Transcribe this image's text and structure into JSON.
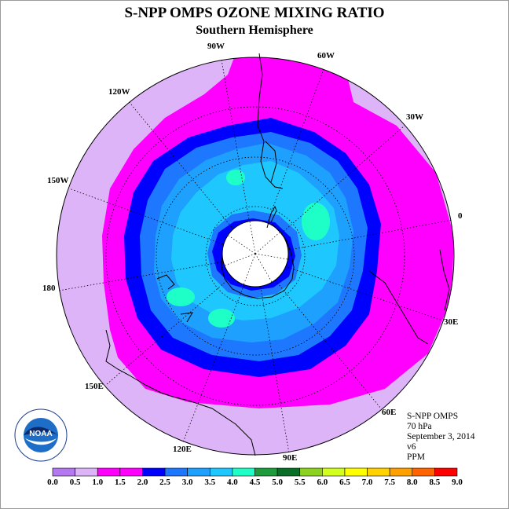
{
  "title": "S-NPP OMPS OZONE MIXING RATIO",
  "subtitle": "Southern Hemisphere",
  "longitude_labels": [
    "90W",
    "60W",
    "30W",
    "0",
    "30E",
    "60E",
    "90E",
    "120E",
    "150E",
    "180",
    "150W",
    "120W"
  ],
  "info": {
    "instrument": "S-NPP OMPS",
    "pressure": "70 hPa",
    "date": "September 3, 2014",
    "version": "v6",
    "units": "PPM"
  },
  "logo_text": "NOAA",
  "colorbar": {
    "ticks": [
      "0.0",
      "0.5",
      "1.0",
      "1.5",
      "2.0",
      "2.5",
      "3.0",
      "3.5",
      "4.0",
      "4.5",
      "5.0",
      "5.5",
      "6.0",
      "6.5",
      "7.0",
      "7.5",
      "8.0",
      "8.5",
      "9.0"
    ],
    "colors": [
      "#b478f0",
      "#deb4f8",
      "#ff00ff",
      "#ff00ff",
      "#0000ff",
      "#1e78ff",
      "#1ea0ff",
      "#1ec8ff",
      "#1effc8",
      "#1e9c3c",
      "#0a6e28",
      "#8cd21e",
      "#d2ff1e",
      "#ffff00",
      "#ffd200",
      "#ffa000",
      "#ff6400",
      "#ff0000",
      "#a0523c"
    ]
  },
  "map_colors": {
    "lilac": "#deb4f8",
    "magenta": "#ff00ff",
    "dark_blue": "#0000ff",
    "blue": "#1e78ff",
    "med_blue": "#1ea0ff",
    "light_blue": "#1ec8ff",
    "cyan": "#1effc8",
    "coast": "#000000",
    "polar_hole": "#ffffff"
  }
}
